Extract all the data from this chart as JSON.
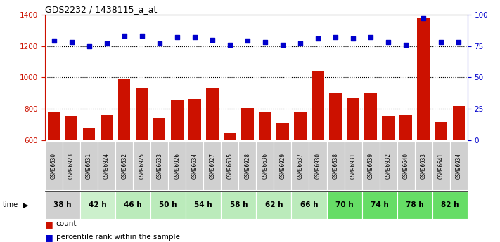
{
  "title": "GDS2232 / 1438115_a_at",
  "samples": [
    "GSM96630",
    "GSM96923",
    "GSM96631",
    "GSM96924",
    "GSM96632",
    "GSM96925",
    "GSM96633",
    "GSM96926",
    "GSM96634",
    "GSM96927",
    "GSM96635",
    "GSM96928",
    "GSM96636",
    "GSM96929",
    "GSM96637",
    "GSM96930",
    "GSM96638",
    "GSM96931",
    "GSM96639",
    "GSM96932",
    "GSM96640",
    "GSM96933",
    "GSM96641",
    "GSM96934"
  ],
  "time_groups": [
    {
      "label": "38 h",
      "indices": [
        0,
        1
      ],
      "color": "#d0d0d0"
    },
    {
      "label": "42 h",
      "indices": [
        2,
        3
      ],
      "color": "#ccf0cc"
    },
    {
      "label": "46 h",
      "indices": [
        4,
        5
      ],
      "color": "#bbebbb"
    },
    {
      "label": "50 h",
      "indices": [
        6,
        7
      ],
      "color": "#bbebbb"
    },
    {
      "label": "54 h",
      "indices": [
        8,
        9
      ],
      "color": "#bbebbb"
    },
    {
      "label": "58 h",
      "indices": [
        10,
        11
      ],
      "color": "#bbebbb"
    },
    {
      "label": "62 h",
      "indices": [
        12,
        13
      ],
      "color": "#bbebbb"
    },
    {
      "label": "66 h",
      "indices": [
        14,
        15
      ],
      "color": "#bbebbb"
    },
    {
      "label": "70 h",
      "indices": [
        16,
        17
      ],
      "color": "#66dd66"
    },
    {
      "label": "74 h",
      "indices": [
        18,
        19
      ],
      "color": "#66dd66"
    },
    {
      "label": "78 h",
      "indices": [
        20,
        21
      ],
      "color": "#66dd66"
    },
    {
      "label": "82 h",
      "indices": [
        22,
        23
      ],
      "color": "#66dd66"
    }
  ],
  "counts": [
    780,
    755,
    680,
    760,
    990,
    935,
    745,
    858,
    865,
    935,
    645,
    805,
    785,
    710,
    780,
    1040,
    900,
    870,
    905,
    750,
    760,
    1380,
    715,
    820
  ],
  "percentile_ranks": [
    79,
    78,
    75,
    77,
    83,
    83,
    77,
    82,
    82,
    80,
    76,
    79,
    78,
    76,
    77,
    81,
    82,
    81,
    82,
    78,
    76,
    97,
    78,
    78
  ],
  "ylim_left": [
    600,
    1400
  ],
  "ylim_right": [
    0,
    100
  ],
  "yticks_left": [
    600,
    800,
    1000,
    1200,
    1400
  ],
  "yticks_right": [
    0,
    25,
    50,
    75,
    100
  ],
  "bar_color": "#cc1100",
  "dot_color": "#0000cc",
  "grid_color": "black",
  "sample_bg_color": "#d0d0d0"
}
